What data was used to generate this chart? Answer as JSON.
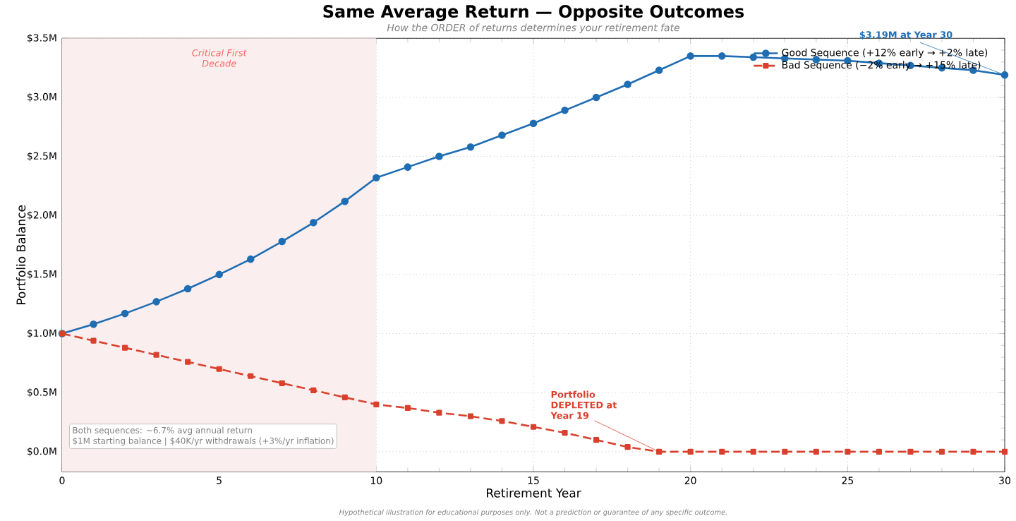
{
  "chart_data": {
    "type": "line",
    "title": "Same Average Return — Opposite Outcomes",
    "subtitle": "How the ORDER of returns determines your retirement fate",
    "xlabel": "Retirement Year",
    "ylabel": "Portfolio Balance",
    "x": [
      0,
      1,
      2,
      3,
      4,
      5,
      6,
      7,
      8,
      9,
      10,
      11,
      12,
      13,
      14,
      15,
      16,
      17,
      18,
      19,
      20,
      21,
      22,
      23,
      24,
      25,
      26,
      27,
      28,
      29,
      30
    ],
    "series": [
      {
        "name": "Good Sequence  (+12% early → +2% late)",
        "color": "#1f6db3",
        "marker": "circle",
        "line_style": "solid",
        "values": [
          1.0,
          1.08,
          1.17,
          1.27,
          1.38,
          1.5,
          1.63,
          1.78,
          1.94,
          2.12,
          2.32,
          2.41,
          2.5,
          2.58,
          2.68,
          2.78,
          2.89,
          3.0,
          3.11,
          3.23,
          3.35,
          3.35,
          3.34,
          3.33,
          3.32,
          3.31,
          3.29,
          3.27,
          3.25,
          3.23,
          3.19
        ]
      },
      {
        "name": "Bad Sequence  (−2% early → +15% late)",
        "color": "#d9412e",
        "marker": "square",
        "line_style": "dashed",
        "values": [
          1.0,
          0.94,
          0.88,
          0.82,
          0.76,
          0.7,
          0.64,
          0.58,
          0.52,
          0.46,
          0.4,
          0.37,
          0.33,
          0.3,
          0.26,
          0.21,
          0.16,
          0.1,
          0.04,
          0.0,
          0.0,
          0.0,
          0.0,
          0.0,
          0.0,
          0.0,
          0.0,
          0.0,
          0.0,
          0.0,
          0.0
        ]
      }
    ],
    "xlim": [
      0,
      30
    ],
    "ylim": [
      -0.17,
      3.5
    ],
    "xticks": [
      0,
      5,
      10,
      15,
      20,
      25,
      30
    ],
    "yticks": [
      {
        "value": 0,
        "label": "$0.0M"
      },
      {
        "value": 0.5,
        "label": "$0.5M"
      },
      {
        "value": 1,
        "label": "$1.0M"
      },
      {
        "value": 1.5,
        "label": "$1.5M"
      },
      {
        "value": 2,
        "label": "$2.0M"
      },
      {
        "value": 2.5,
        "label": "$2.5M"
      },
      {
        "value": 3,
        "label": "$3.0M"
      },
      {
        "value": 3.5,
        "label": "$3.5M"
      }
    ],
    "bands": [
      {
        "axis": "x",
        "from": 0,
        "to": 10,
        "label": "Critical First Decade",
        "color": "#fbeeee"
      }
    ],
    "annotations": [
      {
        "text": "$3.19M at Year 30",
        "x": 30,
        "y": 3.19
      },
      {
        "text": "Portfolio DEPLETED at Year 19",
        "x": 19,
        "y": 0
      },
      "Both sequences: ~6.7% avg annual return",
      "$1M starting balance | $40K/yr withdrawals (+3%/yr inflation)",
      "Hypothetical illustration for educational purposes only. Not a prediction or guarantee of any specific outcome."
    ],
    "grid": true,
    "legend": "top right"
  }
}
